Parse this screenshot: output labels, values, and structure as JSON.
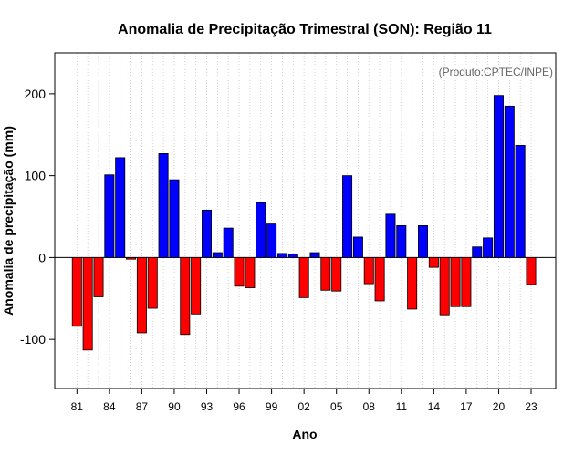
{
  "chart_data": {
    "type": "bar",
    "title": "Anomalia de Precipitação Trimestral (SON): Região 11",
    "xlabel": "Ano",
    "ylabel": "Anomalia de precipitação (mm)",
    "credit": "(Produto:CPTEC/INPE)",
    "ylim": [
      -160,
      250
    ],
    "yticks": [
      -100,
      0,
      100,
      200
    ],
    "xtick_labels": [
      "81",
      "84",
      "87",
      "90",
      "93",
      "96",
      "99",
      "02",
      "05",
      "08",
      "11",
      "14",
      "17",
      "20",
      "23"
    ],
    "xtick_years": [
      1981,
      1984,
      1987,
      1990,
      1993,
      1996,
      1999,
      2002,
      2005,
      2008,
      2011,
      2014,
      2017,
      2020,
      2023
    ],
    "years": [
      1981,
      1982,
      1983,
      1984,
      1985,
      1986,
      1987,
      1988,
      1989,
      1990,
      1991,
      1992,
      1993,
      1994,
      1995,
      1996,
      1997,
      1998,
      1999,
      2000,
      2001,
      2002,
      2003,
      2004,
      2005,
      2006,
      2007,
      2008,
      2009,
      2010,
      2011,
      2012,
      2013,
      2014,
      2015,
      2016,
      2017,
      2018,
      2019,
      2020,
      2021,
      2022,
      2023
    ],
    "values": [
      -84,
      -113,
      -48,
      101,
      122,
      -2,
      -92,
      -62,
      127,
      95,
      -94,
      -69,
      58,
      6,
      36,
      -35,
      -37,
      67,
      41,
      5,
      4,
      -49,
      6,
      -40,
      -41,
      100,
      25,
      -32,
      -53,
      53,
      39,
      -63,
      39,
      -12,
      -70,
      -60,
      -60,
      13,
      24,
      198,
      185,
      137,
      -33
    ],
    "positive_color": "#0000ff",
    "negative_color": "#ff0000"
  }
}
